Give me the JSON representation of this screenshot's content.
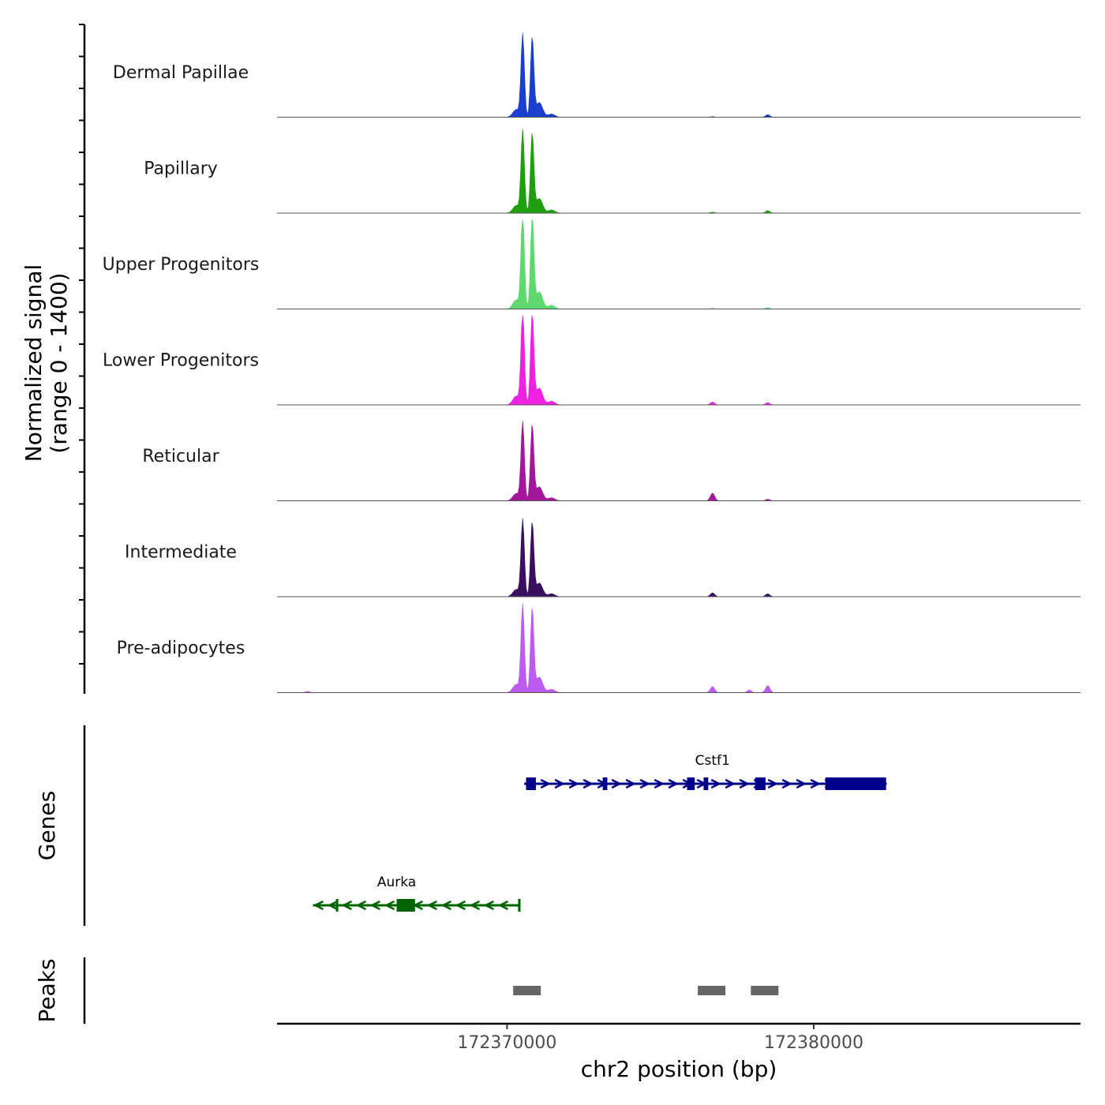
{
  "chart_data": {
    "type": "area",
    "title": "",
    "ylabel_line1": "Normalized signal",
    "ylabel_line2": "(range 0 - 1400)",
    "ylim": [
      0,
      1400
    ],
    "xlabel": "chr2 position (bp)",
    "xlim": [
      172362500,
      172388700
    ],
    "xticks": [
      172370000,
      172380000
    ],
    "xtick_labels": [
      "172370000",
      "172380000"
    ],
    "common_peaks": [
      {
        "pos": 172370510,
        "value": 1300
      },
      {
        "pos": 172370820,
        "value": 1250
      },
      {
        "pos": 172370300,
        "value": 120
      },
      {
        "pos": 172371050,
        "value": 230
      },
      {
        "pos": 172371450,
        "value": 50
      }
    ],
    "tracks": [
      {
        "name": "Dermal Papillae",
        "color": "#1a3fcf",
        "peak_scale": 1.0,
        "extra_peaks": [
          {
            "pos": 172378500,
            "value": 40
          },
          {
            "pos": 172376700,
            "value": 10
          }
        ]
      },
      {
        "name": "Papillary",
        "color": "#1f9f0f",
        "peak_scale": 1.0,
        "extra_peaks": [
          {
            "pos": 172378500,
            "value": 40
          },
          {
            "pos": 172376700,
            "value": 15
          }
        ]
      },
      {
        "name": "Upper Progenitors",
        "color": "#5fd96f",
        "peak_scale": 1.18,
        "extra_peaks": [
          {
            "pos": 172378500,
            "value": 20
          },
          {
            "pos": 172376700,
            "value": 12
          }
        ]
      },
      {
        "name": "Lower Progenitors",
        "color": "#ee20e2",
        "peak_scale": 1.15,
        "extra_peaks": [
          {
            "pos": 172376700,
            "value": 45
          },
          {
            "pos": 172378500,
            "value": 35
          }
        ]
      },
      {
        "name": "Reticular",
        "color": "#a3179b",
        "peak_scale": 0.95,
        "extra_peaks": [
          {
            "pos": 172376700,
            "value": 120
          },
          {
            "pos": 172378500,
            "value": 25
          }
        ]
      },
      {
        "name": "Intermediate",
        "color": "#3a0f5f",
        "peak_scale": 0.93,
        "extra_peaks": [
          {
            "pos": 172376700,
            "value": 60
          },
          {
            "pos": 172378500,
            "value": 45
          }
        ]
      },
      {
        "name": "Pre-adipocytes",
        "color": "#bd5cf2",
        "peak_scale": 1.06,
        "extra_peaks": [
          {
            "pos": 172376700,
            "value": 95
          },
          {
            "pos": 172378500,
            "value": 110
          },
          {
            "pos": 172377900,
            "value": 40
          },
          {
            "pos": 172363500,
            "value": 20
          }
        ]
      }
    ],
    "genes": [
      {
        "name": "Cstf1",
        "strand": "+",
        "color": "#00008b",
        "start": 172370560,
        "end": 172382380,
        "exons": [
          [
            172370620,
            172370940
          ],
          [
            172373120,
            172373270
          ],
          [
            172375870,
            172376120
          ],
          [
            172376410,
            172376560
          ],
          [
            172378090,
            172378430
          ],
          [
            172380380,
            172382360
          ]
        ]
      },
      {
        "name": "Aurka",
        "strand": "-",
        "color": "#006400",
        "start": 172363670,
        "end": 172370420,
        "exons": [
          [
            172366400,
            172367000
          ],
          [
            172364420,
            172364460
          ],
          [
            172370360,
            172370440
          ]
        ]
      }
    ],
    "peaks": [
      [
        172370200,
        172371100
      ],
      [
        172376220,
        172377120
      ],
      [
        172377950,
        172378850
      ]
    ]
  },
  "panels": {
    "genes_label": "Genes",
    "peaks_label": "Peaks"
  }
}
